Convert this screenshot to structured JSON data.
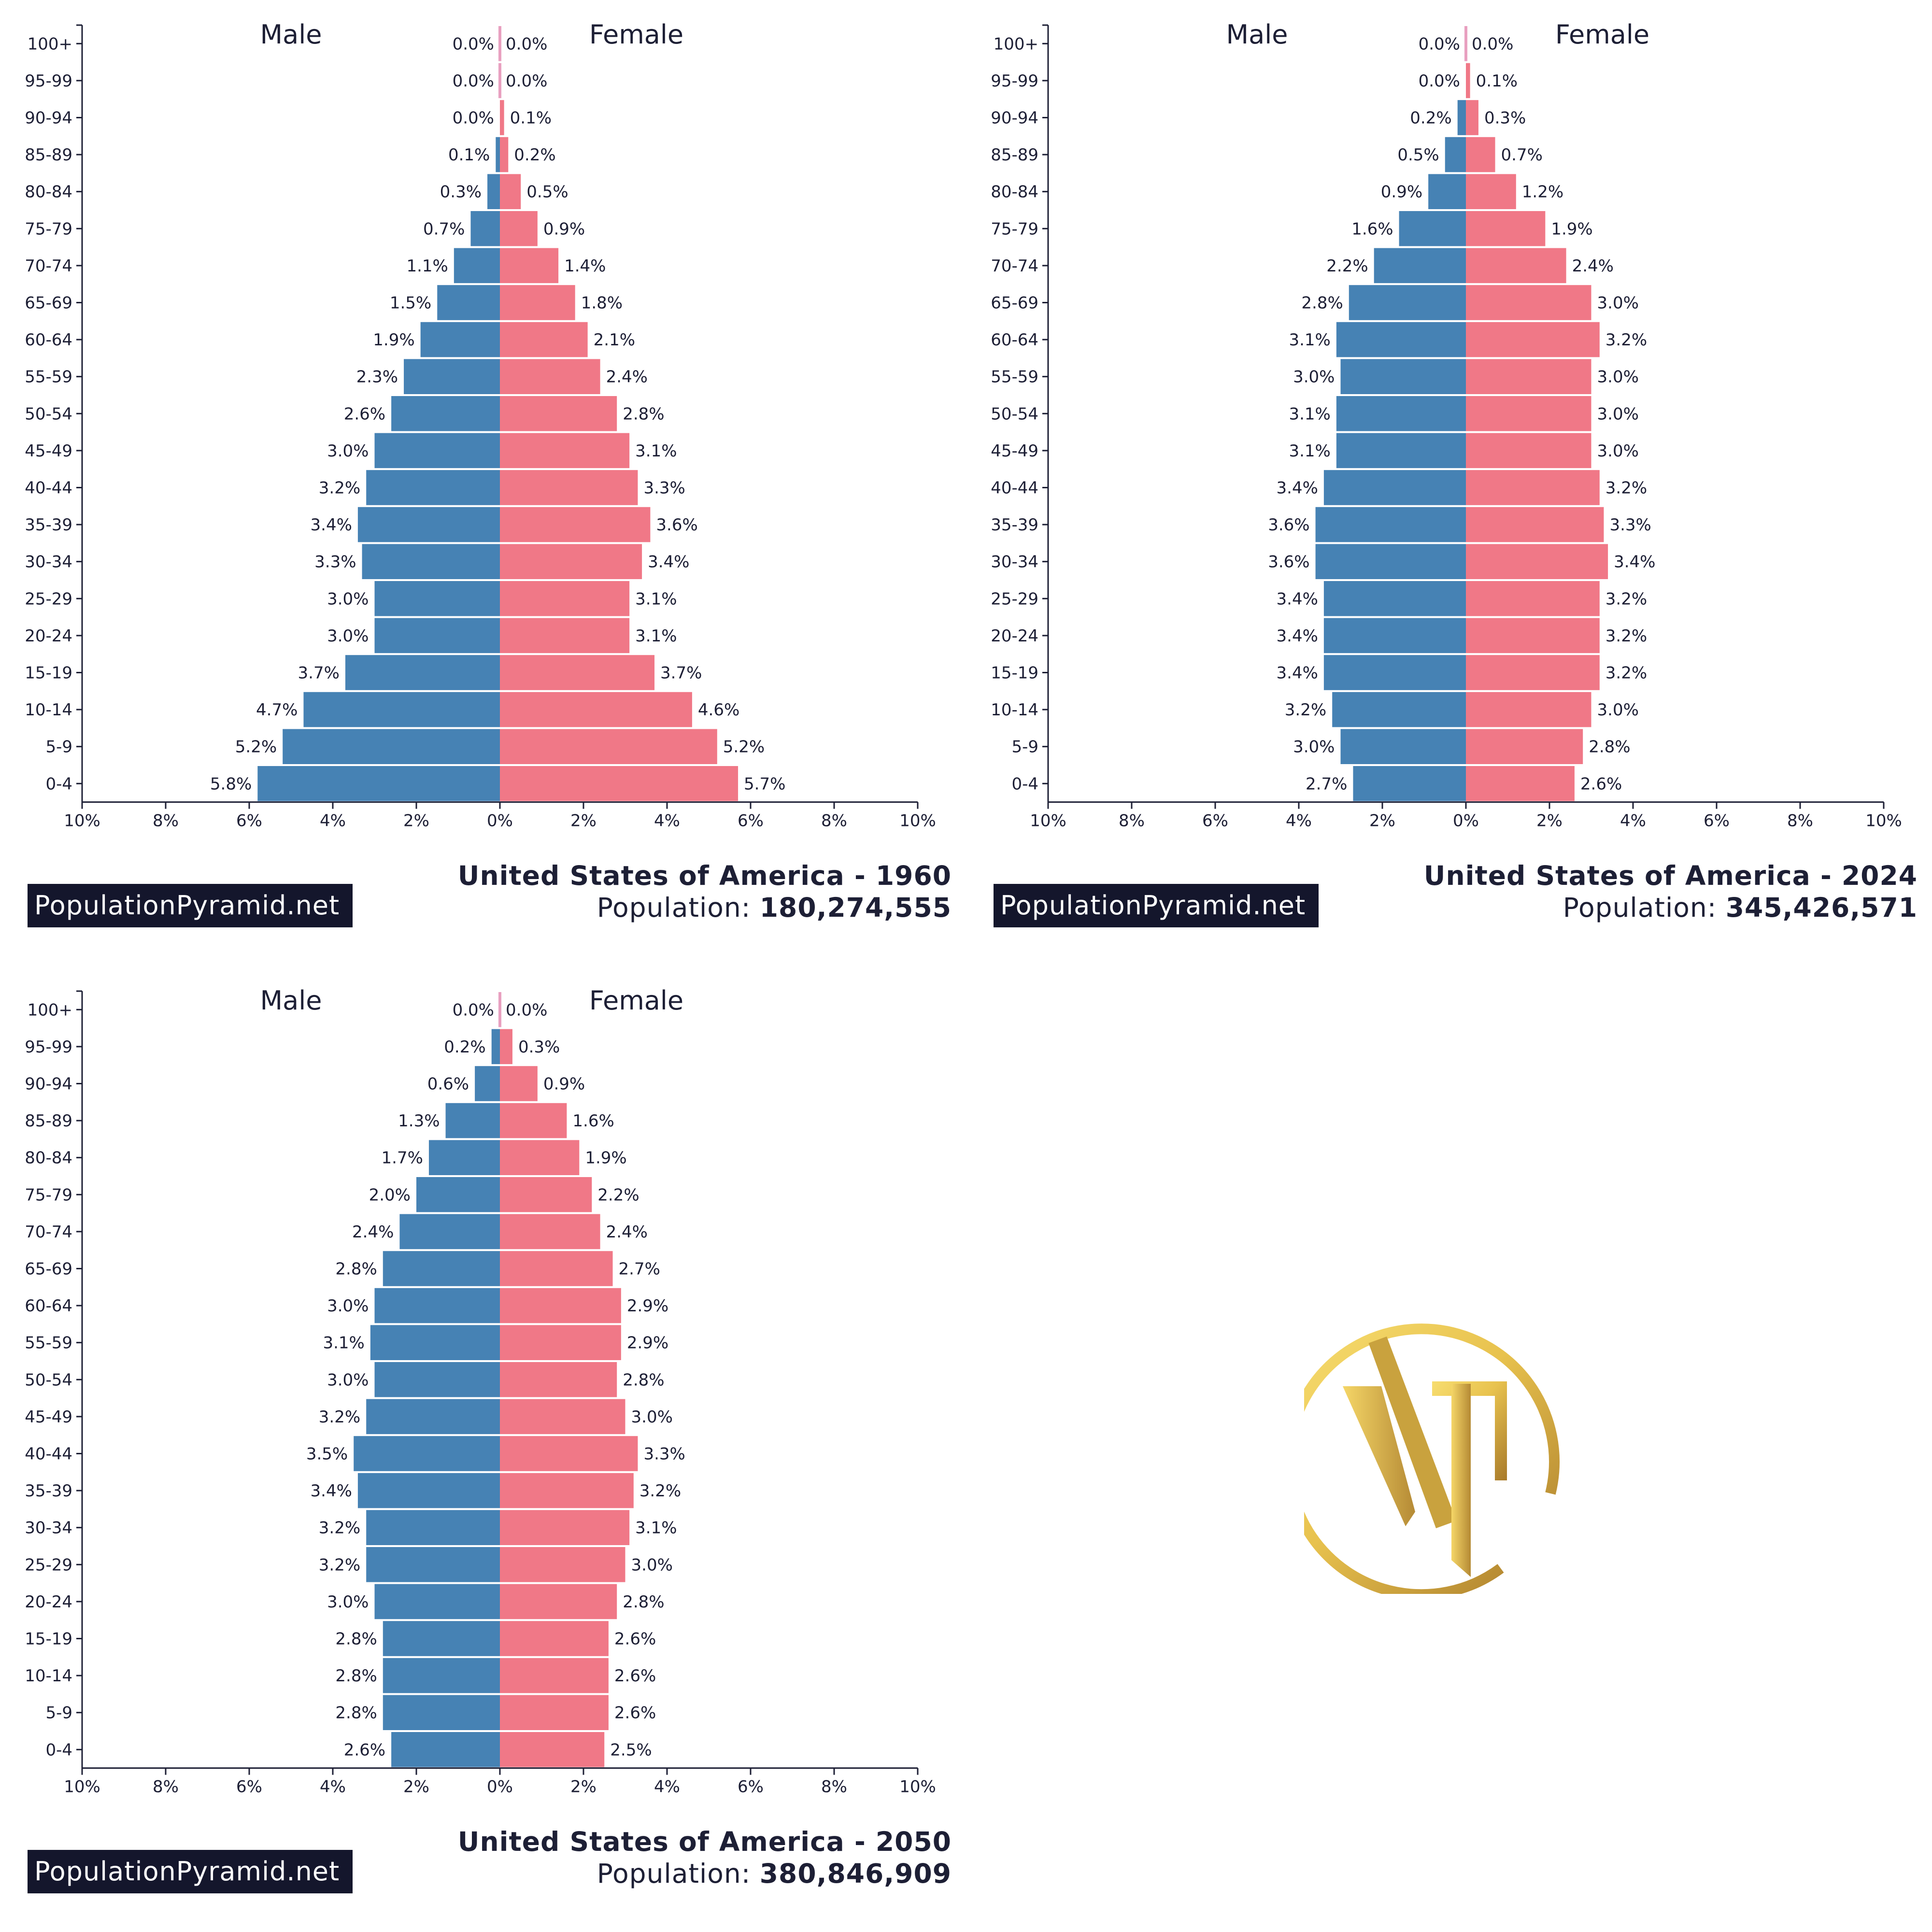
{
  "colors": {
    "male": "#4682b4",
    "female": "#f07887",
    "text": "#1d1f35",
    "brand_bg": "#14162c",
    "gold_light": "#f7dd70",
    "gold_dark": "#a87a2a"
  },
  "brand_label": "PopulationPyramid.net",
  "population_prefix": "Population: ",
  "logo": {
    "icon": "vt-monogram-logo",
    "text": "VT"
  },
  "chart_data": [
    {
      "type": "bar",
      "orientation": "horizontal",
      "title": "United States of America - 1960",
      "population": "180,274,555",
      "male_label": "Male",
      "female_label": "Female",
      "xlim": [
        -10,
        10
      ],
      "xticks": [
        "10%",
        "8%",
        "6%",
        "4%",
        "2%",
        "0%",
        "2%",
        "4%",
        "6%",
        "8%",
        "10%"
      ],
      "categories": [
        "0-4",
        "5-9",
        "10-14",
        "15-19",
        "20-24",
        "25-29",
        "30-34",
        "35-39",
        "40-44",
        "45-49",
        "50-54",
        "55-59",
        "60-64",
        "65-69",
        "70-74",
        "75-79",
        "80-84",
        "85-89",
        "90-94",
        "95-99",
        "100+"
      ],
      "series": [
        {
          "name": "Male",
          "values": [
            5.8,
            5.2,
            4.7,
            3.7,
            3.0,
            3.0,
            3.3,
            3.4,
            3.2,
            3.0,
            2.6,
            2.3,
            1.9,
            1.5,
            1.1,
            0.7,
            0.3,
            0.1,
            0.0,
            0.0,
            0.0
          ]
        },
        {
          "name": "Female",
          "values": [
            5.7,
            5.2,
            4.6,
            3.7,
            3.1,
            3.1,
            3.4,
            3.6,
            3.3,
            3.1,
            2.8,
            2.4,
            2.1,
            1.8,
            1.4,
            0.9,
            0.5,
            0.2,
            0.1,
            0.0,
            0.0
          ]
        }
      ]
    },
    {
      "type": "bar",
      "orientation": "horizontal",
      "title": "United States of America - 2024",
      "population": "345,426,571",
      "male_label": "Male",
      "female_label": "Female",
      "xlim": [
        -10,
        10
      ],
      "xticks": [
        "10%",
        "8%",
        "6%",
        "4%",
        "2%",
        "0%",
        "2%",
        "4%",
        "6%",
        "8%",
        "10%"
      ],
      "categories": [
        "0-4",
        "5-9",
        "10-14",
        "15-19",
        "20-24",
        "25-29",
        "30-34",
        "35-39",
        "40-44",
        "45-49",
        "50-54",
        "55-59",
        "60-64",
        "65-69",
        "70-74",
        "75-79",
        "80-84",
        "85-89",
        "90-94",
        "95-99",
        "100+"
      ],
      "series": [
        {
          "name": "Male",
          "values": [
            2.7,
            3.0,
            3.2,
            3.4,
            3.4,
            3.4,
            3.6,
            3.6,
            3.4,
            3.1,
            3.1,
            3.0,
            3.1,
            2.8,
            2.2,
            1.6,
            0.9,
            0.5,
            0.2,
            0.0,
            0.0
          ]
        },
        {
          "name": "Female",
          "values": [
            2.6,
            2.8,
            3.0,
            3.2,
            3.2,
            3.2,
            3.4,
            3.3,
            3.2,
            3.0,
            3.0,
            3.0,
            3.2,
            3.0,
            2.4,
            1.9,
            1.2,
            0.7,
            0.3,
            0.1,
            0.0
          ]
        }
      ]
    },
    {
      "type": "bar",
      "orientation": "horizontal",
      "title": "United States of America - 2050",
      "population": "380,846,909",
      "male_label": "Male",
      "female_label": "Female",
      "xlim": [
        -10,
        10
      ],
      "xticks": [
        "10%",
        "8%",
        "6%",
        "4%",
        "2%",
        "0%",
        "2%",
        "4%",
        "6%",
        "8%",
        "10%"
      ],
      "categories": [
        "0-4",
        "5-9",
        "10-14",
        "15-19",
        "20-24",
        "25-29",
        "30-34",
        "35-39",
        "40-44",
        "45-49",
        "50-54",
        "55-59",
        "60-64",
        "65-69",
        "70-74",
        "75-79",
        "80-84",
        "85-89",
        "90-94",
        "95-99",
        "100+"
      ],
      "series": [
        {
          "name": "Male",
          "values": [
            2.6,
            2.8,
            2.8,
            2.8,
            3.0,
            3.2,
            3.2,
            3.4,
            3.5,
            3.2,
            3.0,
            3.1,
            3.0,
            2.8,
            2.4,
            2.0,
            1.7,
            1.3,
            0.6,
            0.2,
            0.0
          ]
        },
        {
          "name": "Female",
          "values": [
            2.5,
            2.6,
            2.6,
            2.6,
            2.8,
            3.0,
            3.1,
            3.2,
            3.3,
            3.0,
            2.8,
            2.9,
            2.9,
            2.7,
            2.4,
            2.2,
            1.9,
            1.6,
            0.9,
            0.3,
            0.0
          ]
        }
      ]
    }
  ]
}
